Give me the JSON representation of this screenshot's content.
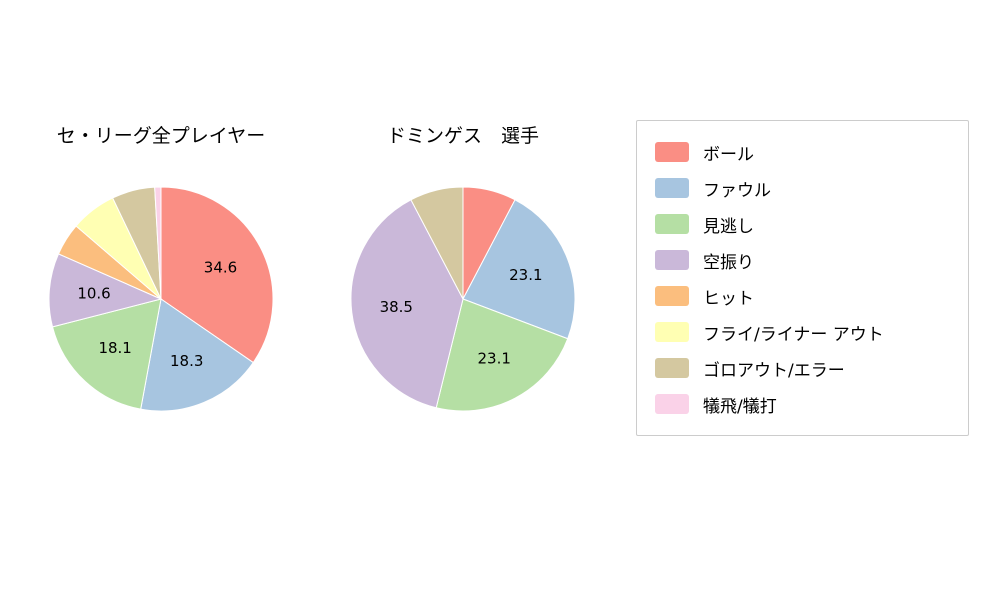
{
  "colors": {
    "background": "#ffffff",
    "legend_border": "#cccccc",
    "text": "#000000"
  },
  "chart_data": [
    {
      "type": "pie",
      "title": "セ・リーグ全プレイヤー",
      "start_angle_deg": -90,
      "clockwise": true,
      "label_distance": 0.6,
      "slices": [
        {
          "name": "ボール",
          "value": 34.6,
          "label": "34.6",
          "color": "#fa8e84"
        },
        {
          "name": "ファウル",
          "value": 18.3,
          "label": "18.3",
          "color": "#a7c5e0"
        },
        {
          "name": "見逃し",
          "value": 18.1,
          "label": "18.1",
          "color": "#b5dfa4"
        },
        {
          "name": "空振り",
          "value": 10.6,
          "label": "10.6",
          "color": "#cab8d9"
        },
        {
          "name": "ヒット",
          "value": 4.7,
          "label": "",
          "color": "#fbbe7e"
        },
        {
          "name": "フライ/ライナー アウト",
          "value": 6.6,
          "label": "",
          "color": "#ffffb3"
        },
        {
          "name": "ゴロアウト/エラー",
          "value": 6.2,
          "label": "",
          "color": "#d4c8a0"
        },
        {
          "name": "犠飛/犠打",
          "value": 0.9,
          "label": "",
          "color": "#fad2e8"
        }
      ]
    },
    {
      "type": "pie",
      "title": "ドミンゲス　選手",
      "start_angle_deg": -90,
      "clockwise": true,
      "label_distance": 0.6,
      "slices": [
        {
          "name": "ボール",
          "value": 7.7,
          "label": "",
          "color": "#fa8e84"
        },
        {
          "name": "ファウル",
          "value": 23.1,
          "label": "23.1",
          "color": "#a7c5e0"
        },
        {
          "name": "見逃し",
          "value": 23.1,
          "label": "23.1",
          "color": "#b5dfa4"
        },
        {
          "name": "空振り",
          "value": 38.5,
          "label": "38.5",
          "color": "#cab8d9"
        },
        {
          "name": "ゴロアウト/エラー",
          "value": 7.7,
          "label": "",
          "color": "#d4c8a0"
        }
      ]
    }
  ],
  "legend": {
    "items": [
      {
        "label": "ボール",
        "color": "#fa8e84"
      },
      {
        "label": "ファウル",
        "color": "#a7c5e0"
      },
      {
        "label": "見逃し",
        "color": "#b5dfa4"
      },
      {
        "label": "空振り",
        "color": "#cab8d9"
      },
      {
        "label": "ヒット",
        "color": "#fbbe7e"
      },
      {
        "label": "フライ/ライナー アウト",
        "color": "#ffffb3"
      },
      {
        "label": "ゴロアウト/エラー",
        "color": "#d4c8a0"
      },
      {
        "label": "犠飛/犠打",
        "color": "#fad2e8"
      }
    ]
  }
}
